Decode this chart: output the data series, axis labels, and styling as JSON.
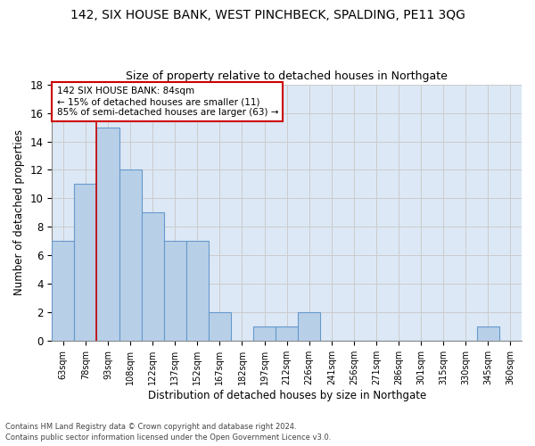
{
  "title": "142, SIX HOUSE BANK, WEST PINCHBECK, SPALDING, PE11 3QG",
  "subtitle": "Size of property relative to detached houses in Northgate",
  "xlabel": "Distribution of detached houses by size in Northgate",
  "ylabel": "Number of detached properties",
  "categories": [
    "63sqm",
    "78sqm",
    "93sqm",
    "108sqm",
    "122sqm",
    "137sqm",
    "152sqm",
    "167sqm",
    "182sqm",
    "197sqm",
    "212sqm",
    "226sqm",
    "241sqm",
    "256sqm",
    "271sqm",
    "286sqm",
    "301sqm",
    "315sqm",
    "330sqm",
    "345sqm",
    "360sqm"
  ],
  "values": [
    7,
    11,
    15,
    12,
    9,
    7,
    7,
    2,
    0,
    1,
    1,
    2,
    0,
    0,
    0,
    0,
    0,
    0,
    0,
    1,
    0
  ],
  "bar_color": "#b8cfe8",
  "bar_edgecolor": "#6699cc",
  "vline_x": 1.5,
  "vline_color": "#cc0000",
  "annotation_text": "142 SIX HOUSE BANK: 84sqm\n← 15% of detached houses are smaller (11)\n85% of semi-detached houses are larger (63) →",
  "annotation_box_edgecolor": "#cc0000",
  "annotation_box_facecolor": "white",
  "ylim": [
    0,
    18
  ],
  "yticks": [
    0,
    2,
    4,
    6,
    8,
    10,
    12,
    14,
    16,
    18
  ],
  "grid_color": "#cccccc",
  "background_color": "#dce8f5",
  "footer_line1": "Contains HM Land Registry data © Crown copyright and database right 2024.",
  "footer_line2": "Contains public sector information licensed under the Open Government Licence v3.0."
}
